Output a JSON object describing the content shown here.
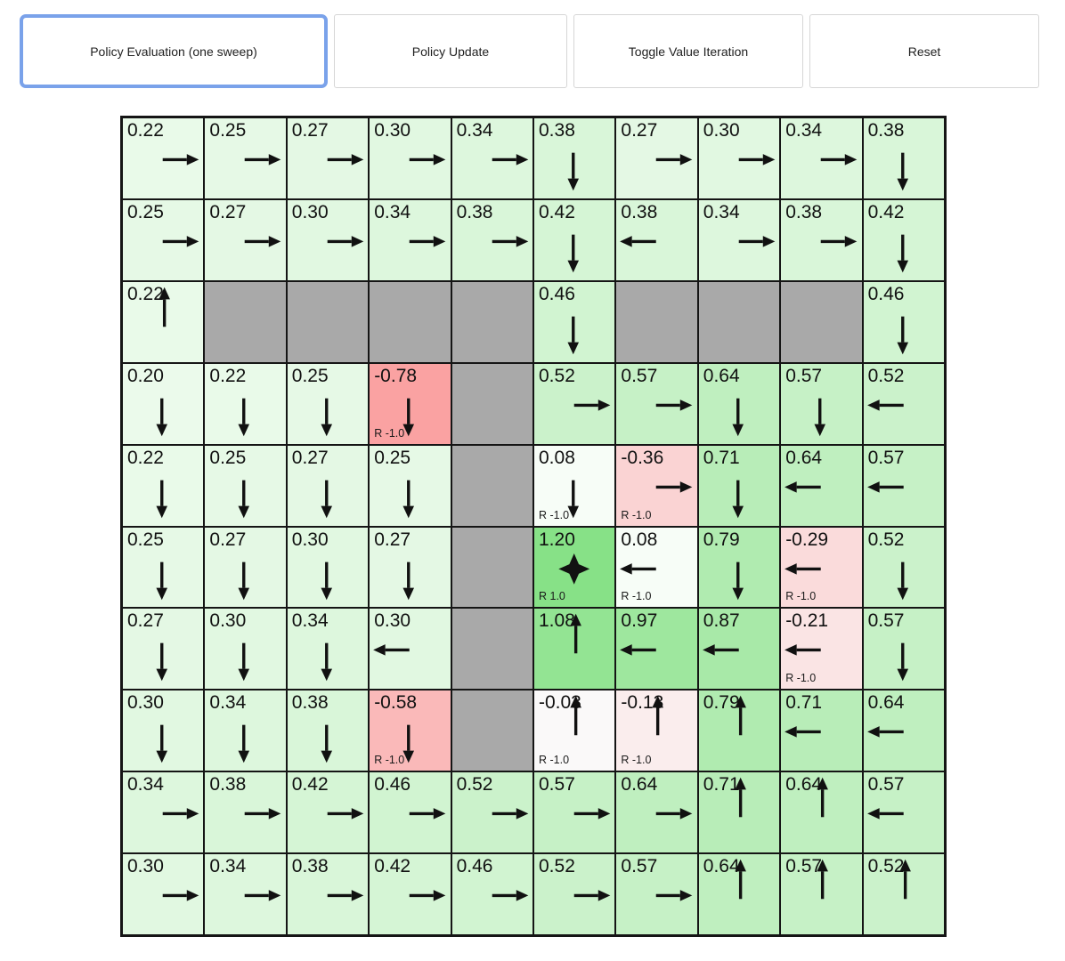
{
  "toolbar": {
    "buttons": [
      {
        "label": "Policy Evaluation (one sweep)",
        "focused": true
      },
      {
        "label": "Policy Update",
        "focused": false
      },
      {
        "label": "Toggle Value Iteration",
        "focused": false
      },
      {
        "label": "Reset",
        "focused": false
      }
    ]
  },
  "colors": {
    "focus_ring": "#7aa2ea",
    "wall": "#a9a9a9",
    "grid_line": "#151515",
    "arrow": "#111111",
    "goal_cell_green": "#87e187",
    "penalty_cell_red": "#f5a5a0"
  },
  "grid": {
    "rows": 10,
    "cols": 10,
    "cells": [
      [
        {
          "value": "0.22",
          "arrow": "right"
        },
        {
          "value": "0.25",
          "arrow": "right"
        },
        {
          "value": "0.27",
          "arrow": "right"
        },
        {
          "value": "0.30",
          "arrow": "right"
        },
        {
          "value": "0.34",
          "arrow": "right"
        },
        {
          "value": "0.38",
          "arrow": "down"
        },
        {
          "value": "0.27",
          "arrow": "right"
        },
        {
          "value": "0.30",
          "arrow": "right"
        },
        {
          "value": "0.34",
          "arrow": "right"
        },
        {
          "value": "0.38",
          "arrow": "down"
        }
      ],
      [
        {
          "value": "0.25",
          "arrow": "right"
        },
        {
          "value": "0.27",
          "arrow": "right"
        },
        {
          "value": "0.30",
          "arrow": "right"
        },
        {
          "value": "0.34",
          "arrow": "right"
        },
        {
          "value": "0.38",
          "arrow": "right"
        },
        {
          "value": "0.42",
          "arrow": "down"
        },
        {
          "value": "0.38",
          "arrow": "left"
        },
        {
          "value": "0.34",
          "arrow": "right"
        },
        {
          "value": "0.38",
          "arrow": "right"
        },
        {
          "value": "0.42",
          "arrow": "down"
        }
      ],
      [
        {
          "value": "0.22",
          "arrow": "up"
        },
        {
          "wall": true
        },
        {
          "wall": true
        },
        {
          "wall": true
        },
        {
          "wall": true
        },
        {
          "value": "0.46",
          "arrow": "down"
        },
        {
          "wall": true
        },
        {
          "wall": true
        },
        {
          "wall": true
        },
        {
          "value": "0.46",
          "arrow": "down"
        }
      ],
      [
        {
          "value": "0.20",
          "arrow": "down"
        },
        {
          "value": "0.22",
          "arrow": "down"
        },
        {
          "value": "0.25",
          "arrow": "down"
        },
        {
          "value": "-0.78",
          "arrow": "down",
          "reward": "R -1.0"
        },
        {
          "wall": true
        },
        {
          "value": "0.52",
          "arrow": "right"
        },
        {
          "value": "0.57",
          "arrow": "right"
        },
        {
          "value": "0.64",
          "arrow": "down"
        },
        {
          "value": "0.57",
          "arrow": "down"
        },
        {
          "value": "0.52",
          "arrow": "left"
        }
      ],
      [
        {
          "value": "0.22",
          "arrow": "down"
        },
        {
          "value": "0.25",
          "arrow": "down"
        },
        {
          "value": "0.27",
          "arrow": "down"
        },
        {
          "value": "0.25",
          "arrow": "down"
        },
        {
          "wall": true
        },
        {
          "value": "0.08",
          "arrow": "down",
          "reward": "R -1.0"
        },
        {
          "value": "-0.36",
          "arrow": "right",
          "reward": "R -1.0"
        },
        {
          "value": "0.71",
          "arrow": "down"
        },
        {
          "value": "0.64",
          "arrow": "left"
        },
        {
          "value": "0.57",
          "arrow": "left"
        }
      ],
      [
        {
          "value": "0.25",
          "arrow": "down"
        },
        {
          "value": "0.27",
          "arrow": "down"
        },
        {
          "value": "0.30",
          "arrow": "down"
        },
        {
          "value": "0.27",
          "arrow": "down"
        },
        {
          "wall": true
        },
        {
          "value": "1.20",
          "arrow": "star",
          "reward": "R 1.0"
        },
        {
          "value": "0.08",
          "arrow": "left",
          "reward": "R -1.0"
        },
        {
          "value": "0.79",
          "arrow": "down"
        },
        {
          "value": "-0.29",
          "arrow": "left",
          "reward": "R -1.0"
        },
        {
          "value": "0.52",
          "arrow": "down"
        }
      ],
      [
        {
          "value": "0.27",
          "arrow": "down"
        },
        {
          "value": "0.30",
          "arrow": "down"
        },
        {
          "value": "0.34",
          "arrow": "down"
        },
        {
          "value": "0.30",
          "arrow": "left"
        },
        {
          "wall": true
        },
        {
          "value": "1.08",
          "arrow": "up"
        },
        {
          "value": "0.97",
          "arrow": "left"
        },
        {
          "value": "0.87",
          "arrow": "left"
        },
        {
          "value": "-0.21",
          "arrow": "left",
          "reward": "R -1.0"
        },
        {
          "value": "0.57",
          "arrow": "down"
        }
      ],
      [
        {
          "value": "0.30",
          "arrow": "down"
        },
        {
          "value": "0.34",
          "arrow": "down"
        },
        {
          "value": "0.38",
          "arrow": "down"
        },
        {
          "value": "-0.58",
          "arrow": "down",
          "reward": "R -1.0"
        },
        {
          "wall": true
        },
        {
          "value": "-0.03",
          "arrow": "up",
          "reward": "R -1.0"
        },
        {
          "value": "-0.13",
          "arrow": "up",
          "reward": "R -1.0"
        },
        {
          "value": "0.79",
          "arrow": "up"
        },
        {
          "value": "0.71",
          "arrow": "left"
        },
        {
          "value": "0.64",
          "arrow": "left"
        }
      ],
      [
        {
          "value": "0.34",
          "arrow": "right"
        },
        {
          "value": "0.38",
          "arrow": "right"
        },
        {
          "value": "0.42",
          "arrow": "right"
        },
        {
          "value": "0.46",
          "arrow": "right"
        },
        {
          "value": "0.52",
          "arrow": "right"
        },
        {
          "value": "0.57",
          "arrow": "right"
        },
        {
          "value": "0.64",
          "arrow": "right"
        },
        {
          "value": "0.71",
          "arrow": "up"
        },
        {
          "value": "0.64",
          "arrow": "up"
        },
        {
          "value": "0.57",
          "arrow": "left"
        }
      ],
      [
        {
          "value": "0.30",
          "arrow": "right"
        },
        {
          "value": "0.34",
          "arrow": "right"
        },
        {
          "value": "0.38",
          "arrow": "right"
        },
        {
          "value": "0.42",
          "arrow": "right"
        },
        {
          "value": "0.46",
          "arrow": "right"
        },
        {
          "value": "0.52",
          "arrow": "right"
        },
        {
          "value": "0.57",
          "arrow": "right"
        },
        {
          "value": "0.64",
          "arrow": "up"
        },
        {
          "value": "0.57",
          "arrow": "up"
        },
        {
          "value": "0.52",
          "arrow": "up"
        }
      ]
    ]
  }
}
